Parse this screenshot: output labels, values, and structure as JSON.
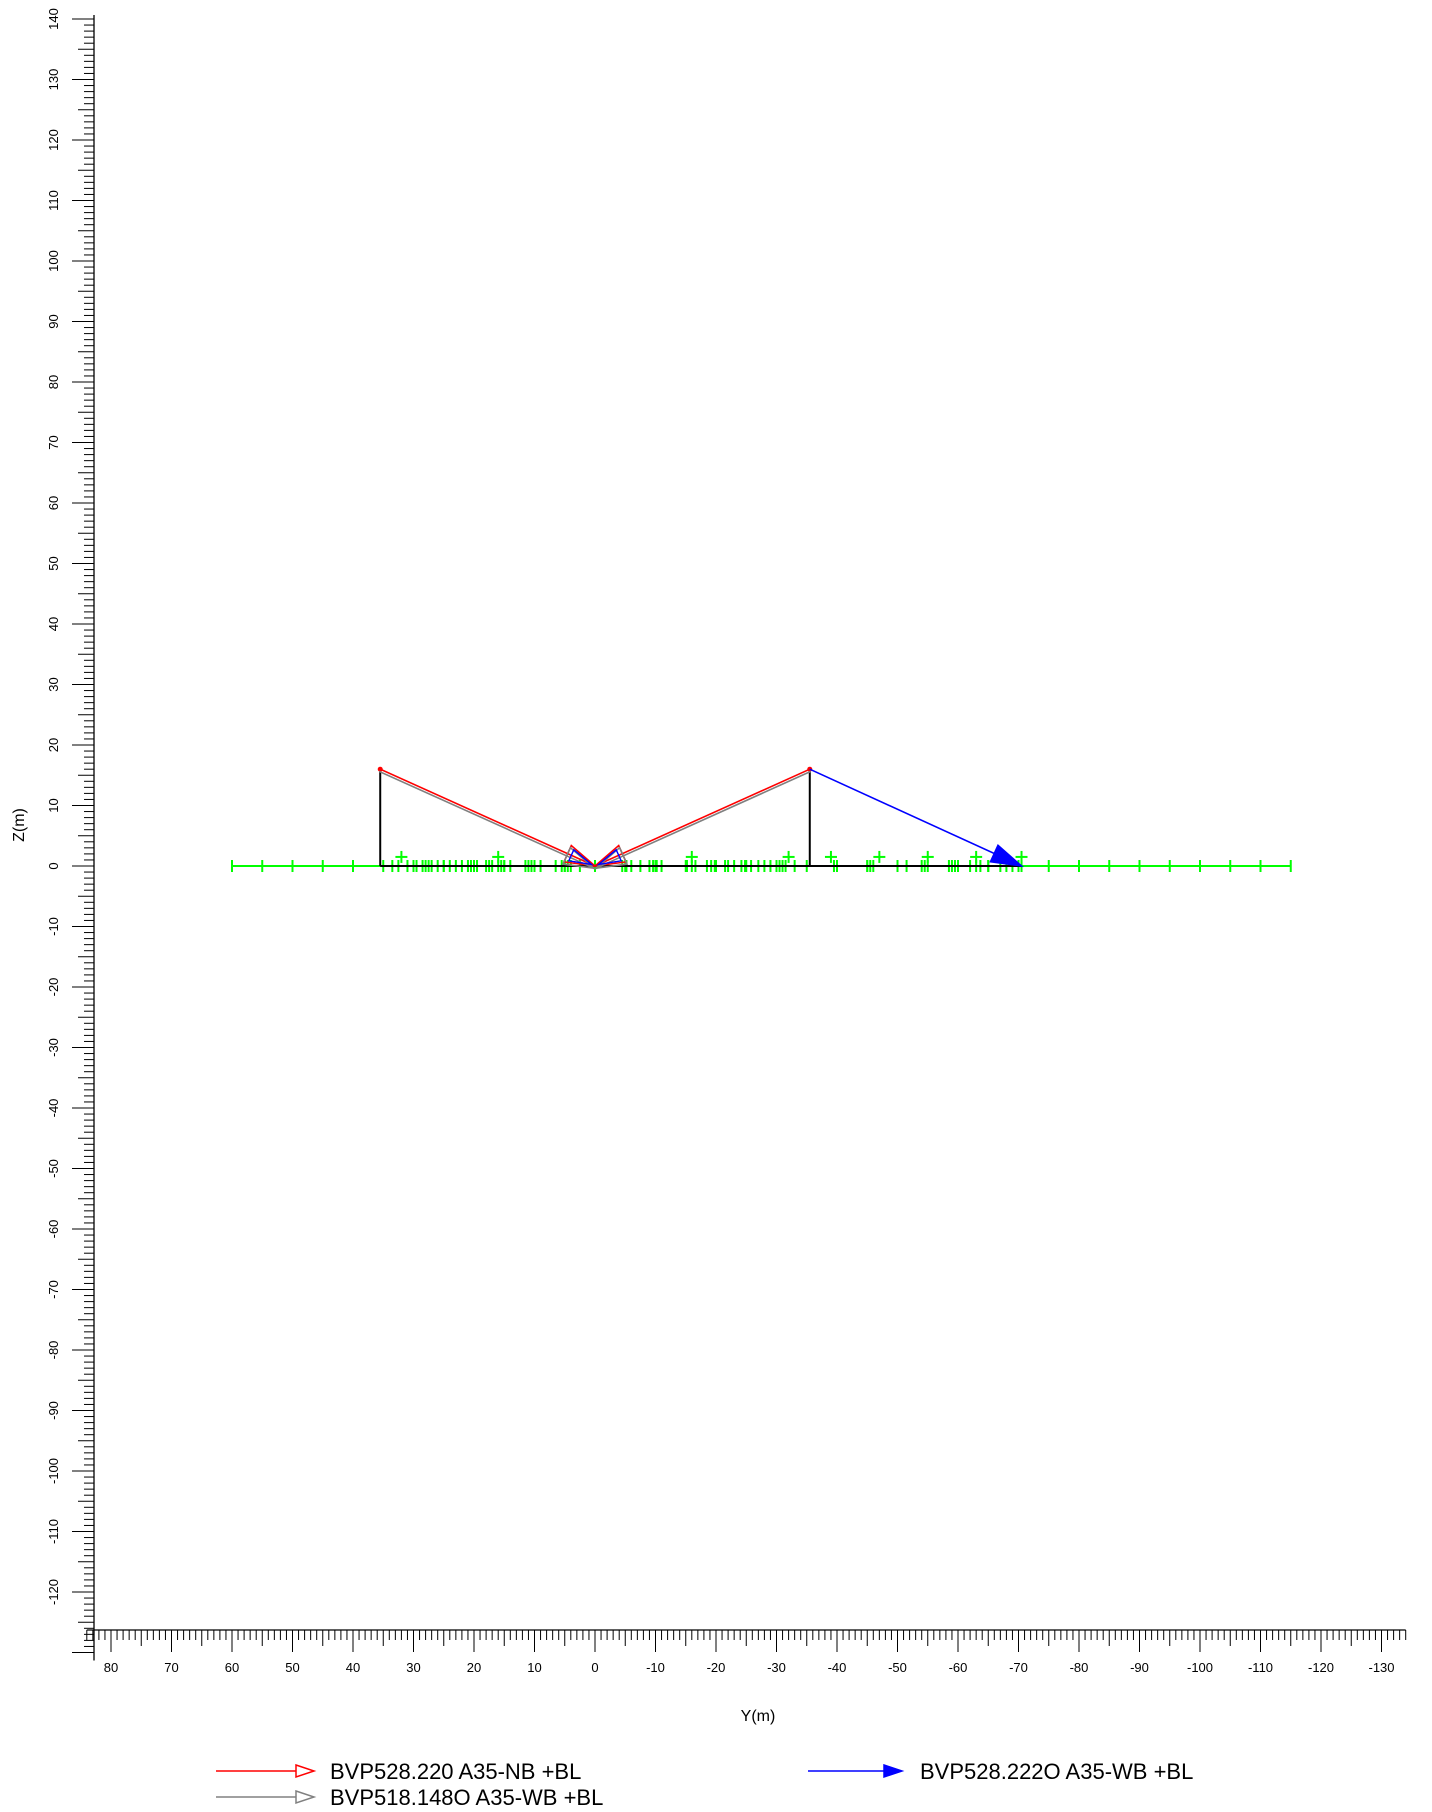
{
  "diagram": {
    "y_axis": {
      "label": "Z(m)",
      "min": -130,
      "max": 140,
      "labeled_ticks": [
        140,
        130,
        120,
        110,
        100,
        90,
        80,
        70,
        60,
        50,
        40,
        30,
        20,
        10,
        0,
        -10,
        -20,
        -30,
        -40,
        -50,
        -60,
        -70,
        -80,
        -90,
        -100,
        -110,
        -120
      ]
    },
    "x_axis": {
      "label": "Y(m)",
      "left_value": 84,
      "right_value": -134,
      "labeled_ticks": [
        80,
        70,
        60,
        50,
        40,
        30,
        20,
        10,
        0,
        -10,
        -20,
        -30,
        -40,
        -50,
        -60,
        -70,
        -80,
        -90,
        -100,
        -110,
        -120,
        -130
      ]
    },
    "colors": {
      "red": "#ff0000",
      "blue": "#0000ff",
      "gray": "#808080",
      "green": "#00ff00",
      "black": "#000000"
    },
    "ground_line": {
      "y_from": 60,
      "y_to": -115,
      "z": 0
    },
    "ground_markers_y": [
      60,
      55,
      50,
      45,
      40,
      35,
      30,
      25,
      20,
      15,
      10,
      5,
      0,
      -5,
      -10,
      -15,
      -20,
      -25,
      -30,
      -35,
      -40,
      -45,
      -50,
      -55,
      -60,
      -65,
      -70,
      -75,
      -80,
      -85,
      -90,
      -95,
      -100,
      -105,
      -110,
      -115,
      33.5,
      32.5,
      31,
      29.5,
      28.5,
      28,
      27.5,
      27,
      26,
      25,
      24,
      23,
      22,
      21,
      20.5,
      19.5,
      18,
      17.5,
      17,
      16,
      15.5,
      15,
      14,
      11.5,
      11,
      10.5,
      9,
      6.5,
      5.5,
      5,
      4.5,
      4,
      2.5,
      -4.5,
      -5.2,
      -6,
      -7.5,
      -9,
      -9.6,
      -10.2,
      -11,
      -15.2,
      -16,
      -16.6,
      -18.5,
      -19.2,
      -19.8,
      -21.5,
      -22,
      -23,
      -24.2,
      -24.8,
      -25.8,
      -27,
      -28,
      -29,
      -30.5,
      -31,
      -31.5,
      -33,
      -39.5,
      -40,
      -45,
      -45.5,
      -46,
      -51.5,
      -54,
      -54.5,
      -58.5,
      -59,
      -59.5,
      -62,
      -63,
      -63.7,
      -65,
      -67,
      -68,
      -69,
      -70.5
    ],
    "raised_markers": [
      {
        "y": 32,
        "z": 1.5
      },
      {
        "y": 16,
        "z": 1.5
      },
      {
        "y": -16,
        "z": 1.5
      },
      {
        "y": -32,
        "z": 1.5
      },
      {
        "y": -39,
        "z": 1.5
      },
      {
        "y": -47,
        "z": 1.5
      },
      {
        "y": -55,
        "z": 1.5
      },
      {
        "y": -63,
        "z": 1.5
      },
      {
        "y": -70.5,
        "z": 1.5
      }
    ],
    "poles": [
      {
        "y": 35.5,
        "z_top": 16
      },
      {
        "y": -35.5,
        "z_top": 16
      }
    ],
    "base_segments": [
      {
        "y1": 35.5,
        "y2": -3
      },
      {
        "y1": -3,
        "y2": -70.5
      }
    ],
    "rays": [
      {
        "color": "red",
        "from": [
          35.5,
          16
        ],
        "to": [
          0,
          0
        ],
        "head": "open"
      },
      {
        "color": "gray",
        "from": [
          35.5,
          16
        ],
        "to": [
          0,
          0
        ],
        "head": "open",
        "offset": 0.8
      },
      {
        "color": "red",
        "from": [
          -35.5,
          16
        ],
        "to": [
          0,
          0
        ],
        "head": "open"
      },
      {
        "color": "gray",
        "from": [
          -35.5,
          16
        ],
        "to": [
          0,
          0
        ],
        "head": "open",
        "offset": -0.8
      },
      {
        "color": "blue",
        "from": [
          -35.5,
          16
        ],
        "to": [
          -70.5,
          0
        ],
        "head": "filled"
      }
    ],
    "small_arrows_near_origin": [
      {
        "color": "blue",
        "from": [
          -35.5,
          16
        ],
        "to": [
          0,
          0
        ]
      },
      {
        "color": "blue",
        "from": [
          35.5,
          16
        ],
        "to": [
          0,
          0
        ]
      }
    ]
  },
  "legend": [
    {
      "color": "red",
      "head": "open",
      "label": "BVP528.220 A35-NB +BL"
    },
    {
      "color": "blue",
      "head": "filled",
      "label": "BVP528.222O A35-WB +BL"
    },
    {
      "color": "gray",
      "head": "open",
      "label": "BVP518.148O A35-WB +BL"
    }
  ]
}
